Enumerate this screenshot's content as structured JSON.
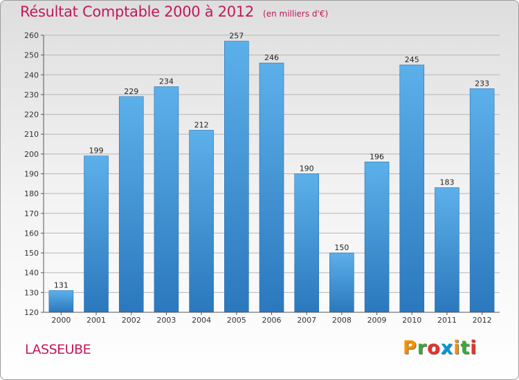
{
  "title": "Résultat Comptable 2000 à 2012",
  "subtitle": "(en milliers d'€)",
  "commune": "LASSEUBE",
  "logo": {
    "letters": [
      "P",
      "r",
      "o",
      "x",
      "i",
      "t",
      "i"
    ],
    "colors": [
      "#f39200",
      "#3aaa35",
      "#e6332a",
      "#0098d8",
      "#f39200",
      "#3aaa35",
      "#e6332a"
    ]
  },
  "colors": {
    "bar": "#3b8fd6",
    "bar_light": "#5aaee8",
    "bar_dark": "#2a74b8",
    "title": "#c2185b"
  },
  "chart_data": {
    "type": "bar",
    "title": "Résultat Comptable 2000 à 2012",
    "subtitle": "(en milliers d'€)",
    "categories": [
      "2000",
      "2001",
      "2002",
      "2003",
      "2004",
      "2005",
      "2006",
      "2007",
      "2008",
      "2009",
      "2010",
      "2011",
      "2012"
    ],
    "values": [
      131,
      199,
      229,
      234,
      212,
      257,
      246,
      190,
      150,
      196,
      245,
      183,
      233
    ],
    "ylim": [
      120,
      260
    ],
    "yticks": [
      120,
      130,
      140,
      150,
      160,
      170,
      180,
      190,
      200,
      210,
      220,
      230,
      240,
      250,
      260
    ],
    "grid": true,
    "legend": "none"
  }
}
